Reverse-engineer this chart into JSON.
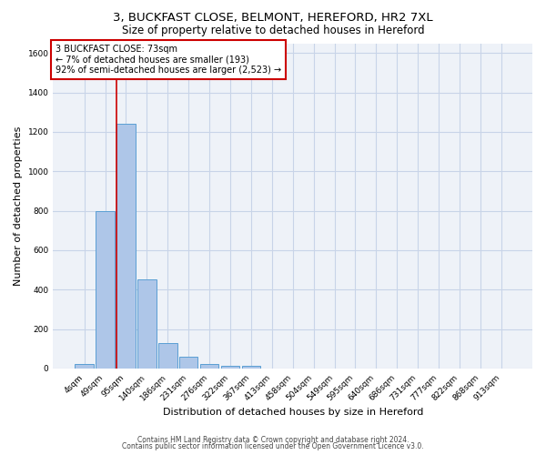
{
  "title1": "3, BUCKFAST CLOSE, BELMONT, HEREFORD, HR2 7XL",
  "title2": "Size of property relative to detached houses in Hereford",
  "xlabel": "Distribution of detached houses by size in Hereford",
  "ylabel": "Number of detached properties",
  "footnote1": "Contains HM Land Registry data © Crown copyright and database right 2024.",
  "footnote2": "Contains public sector information licensed under the Open Government Licence v3.0.",
  "bar_labels": [
    "4sqm",
    "49sqm",
    "95sqm",
    "140sqm",
    "186sqm",
    "231sqm",
    "276sqm",
    "322sqm",
    "367sqm",
    "413sqm",
    "458sqm",
    "504sqm",
    "549sqm",
    "595sqm",
    "640sqm",
    "686sqm",
    "731sqm",
    "777sqm",
    "822sqm",
    "868sqm",
    "913sqm"
  ],
  "bar_values": [
    25,
    800,
    1240,
    450,
    130,
    58,
    22,
    15,
    12,
    0,
    0,
    0,
    0,
    0,
    0,
    0,
    0,
    0,
    0,
    0,
    0
  ],
  "bar_color": "#aec6e8",
  "bar_edge_color": "#5a9fd4",
  "red_line_color": "#cc0000",
  "annotation_box_text_line1": "3 BUCKFAST CLOSE: 73sqm",
  "annotation_box_text_line2": "← 7% of detached houses are smaller (193)",
  "annotation_box_text_line3": "92% of semi-detached houses are larger (2,523) →",
  "ylim": [
    0,
    1650
  ],
  "yticks": [
    0,
    200,
    400,
    600,
    800,
    1000,
    1200,
    1400,
    1600
  ],
  "grid_color": "#c8d4e8",
  "bg_color": "#eef2f8",
  "title1_fontsize": 9.5,
  "title2_fontsize": 8.5,
  "xlabel_fontsize": 8,
  "ylabel_fontsize": 8,
  "tick_fontsize": 6.5,
  "annot_fontsize": 7,
  "footnote_fontsize": 5.5
}
